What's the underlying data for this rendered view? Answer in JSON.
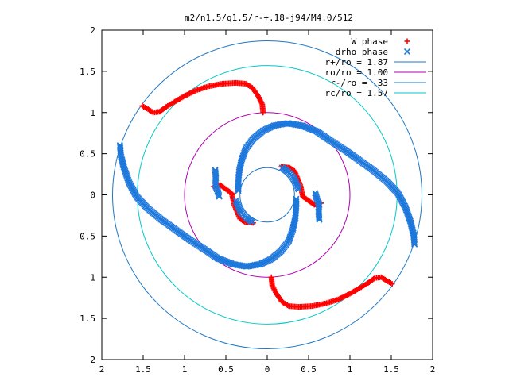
{
  "chart_data": {
    "type": "scatter",
    "title": "m2/n1.5/q1.5/r-+.18-j94/M4.0/512",
    "xlim": [
      -2,
      2
    ],
    "ylim": [
      -2,
      2
    ],
    "x_tick_labels": [
      "2",
      "1.5",
      "1",
      "0.5",
      "0",
      "0.5",
      "1",
      "1.5",
      "2"
    ],
    "y_tick_labels": [
      "2",
      "1.5",
      "1",
      "0.5",
      "0",
      "0.5",
      "1",
      "1.5",
      "2"
    ],
    "legend_position": "top-right",
    "grid": false,
    "series": [
      {
        "name": "W phase",
        "kind": "points",
        "marker": "+",
        "color": "#ff0000",
        "points": [
          [
            -1.51,
            1.08
          ],
          [
            -1.44,
            1.04
          ],
          [
            -1.38,
            1.0
          ],
          [
            -1.3,
            1.01
          ],
          [
            -1.22,
            1.07
          ],
          [
            -1.12,
            1.13
          ],
          [
            -1.0,
            1.2
          ],
          [
            -0.86,
            1.27
          ],
          [
            -0.7,
            1.32
          ],
          [
            -0.54,
            1.35
          ],
          [
            -0.38,
            1.36
          ],
          [
            -0.26,
            1.35
          ],
          [
            -0.18,
            1.3
          ],
          [
            -0.11,
            1.2
          ],
          [
            -0.06,
            1.1
          ],
          [
            -0.05,
            1.0
          ],
          [
            1.51,
            -1.08
          ],
          [
            1.44,
            -1.04
          ],
          [
            1.38,
            -1.0
          ],
          [
            1.3,
            -1.01
          ],
          [
            1.22,
            -1.07
          ],
          [
            1.12,
            -1.13
          ],
          [
            1.0,
            -1.2
          ],
          [
            0.86,
            -1.27
          ],
          [
            0.7,
            -1.32
          ],
          [
            0.54,
            -1.35
          ],
          [
            0.38,
            -1.36
          ],
          [
            0.26,
            -1.35
          ],
          [
            0.18,
            -1.3
          ],
          [
            0.11,
            -1.2
          ],
          [
            0.06,
            -1.1
          ],
          [
            0.05,
            -1.0
          ],
          [
            -0.65,
            0.1
          ],
          [
            -0.57,
            0.12
          ],
          [
            -0.5,
            0.07
          ],
          [
            -0.43,
            0.02
          ],
          [
            -0.4,
            -0.12
          ],
          [
            -0.33,
            -0.29
          ],
          [
            -0.27,
            -0.33
          ],
          [
            -0.17,
            -0.34
          ],
          [
            0.65,
            -0.1
          ],
          [
            0.57,
            -0.12
          ],
          [
            0.5,
            -0.07
          ],
          [
            0.43,
            -0.02
          ],
          [
            0.4,
            0.12
          ],
          [
            0.33,
            0.29
          ],
          [
            0.27,
            0.33
          ],
          [
            0.17,
            0.34
          ]
        ]
      },
      {
        "name": "drho phase",
        "kind": "points",
        "marker": "x",
        "color": "#1e78dc",
        "points": [
          [
            -1.78,
            0.6
          ],
          [
            -1.77,
            0.48
          ],
          [
            -1.73,
            0.32
          ],
          [
            -1.67,
            0.15
          ],
          [
            -1.58,
            -0.02
          ],
          [
            -1.45,
            -0.16
          ],
          [
            -1.28,
            -0.3
          ],
          [
            -1.1,
            -0.43
          ],
          [
            -0.93,
            -0.55
          ],
          [
            -0.76,
            -0.66
          ],
          [
            -0.6,
            -0.77
          ],
          [
            -0.42,
            -0.84
          ],
          [
            -0.25,
            -0.87
          ],
          [
            -0.08,
            -0.84
          ],
          [
            0.05,
            -0.78
          ],
          [
            0.17,
            -0.68
          ],
          [
            0.26,
            -0.56
          ],
          [
            0.31,
            -0.42
          ],
          [
            0.34,
            -0.28
          ],
          [
            0.35,
            -0.15
          ],
          [
            0.35,
            -0.05
          ],
          [
            1.78,
            -0.6
          ],
          [
            1.77,
            -0.48
          ],
          [
            1.73,
            -0.32
          ],
          [
            1.67,
            -0.15
          ],
          [
            1.58,
            0.02
          ],
          [
            1.45,
            0.16
          ],
          [
            1.28,
            0.3
          ],
          [
            1.1,
            0.43
          ],
          [
            0.93,
            0.55
          ],
          [
            0.76,
            0.66
          ],
          [
            0.6,
            0.77
          ],
          [
            0.42,
            0.84
          ],
          [
            0.25,
            0.87
          ],
          [
            0.08,
            0.84
          ],
          [
            -0.05,
            0.78
          ],
          [
            -0.17,
            0.68
          ],
          [
            -0.26,
            0.56
          ],
          [
            -0.31,
            0.42
          ],
          [
            -0.34,
            0.28
          ],
          [
            -0.35,
            0.15
          ],
          [
            -0.35,
            0.05
          ],
          [
            -0.63,
            0.3
          ],
          [
            -0.62,
            0.2
          ],
          [
            -0.63,
            0.12
          ],
          [
            -0.6,
            0.05
          ],
          [
            -0.58,
            -0.02
          ],
          [
            0.63,
            -0.3
          ],
          [
            0.62,
            -0.2
          ],
          [
            0.63,
            -0.12
          ],
          [
            0.6,
            -0.05
          ],
          [
            0.58,
            0.02
          ],
          [
            -0.38,
            -0.07
          ],
          [
            -0.32,
            -0.21
          ],
          [
            -0.25,
            -0.28
          ],
          [
            -0.18,
            -0.33
          ],
          [
            0.38,
            0.07
          ],
          [
            0.32,
            0.21
          ],
          [
            0.25,
            0.28
          ],
          [
            0.18,
            0.33
          ]
        ]
      },
      {
        "name": "r+/ro = 1.87",
        "kind": "circle",
        "radius": 1.87,
        "color": "#1f77c4"
      },
      {
        "name": "ro/ro = 1.00",
        "kind": "circle",
        "radius": 1.0,
        "color": "#b000b0"
      },
      {
        "name": "r-/ro = .33",
        "kind": "circle",
        "radius": 0.33,
        "color": "#1f77c4"
      },
      {
        "name": "rc/ro = 1.57",
        "kind": "circle",
        "radius": 1.57,
        "color": "#00c8c8"
      }
    ]
  }
}
